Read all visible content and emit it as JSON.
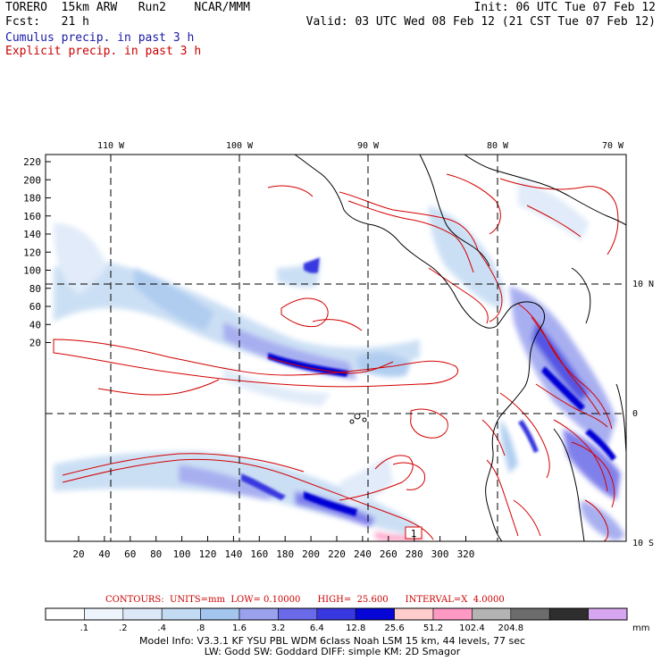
{
  "header": {
    "left_line1": "TORERO  15km ARW   Run2    NCAR/MMM",
    "left_line2": "Fcst:   21 h",
    "right_line1": "Init: 06 UTC Tue 07 Feb 12",
    "right_line2": "Valid: 03 UTC Wed 08 Feb 12 (21 CST Tue 07 Feb 12)",
    "legend_cumulus": "Cumulus precip. in past 3 h",
    "legend_explicit": "Explicit precip. in past 3 h",
    "legend_cumulus_color": "#1a1aa8",
    "legend_explicit_color": "#cc0000"
  },
  "map": {
    "lon_labels": [
      "110 W",
      "100 W",
      "90 W",
      "80 W",
      "70 W"
    ],
    "lat_labels": [
      "10 N",
      "0",
      "10 S"
    ],
    "y_ticks": [
      "220",
      "200",
      "180",
      "160",
      "140",
      "120",
      "100",
      "80",
      "60",
      "40",
      "20"
    ],
    "x_ticks": [
      "20",
      "40",
      "60",
      "80",
      "100",
      "120",
      "140",
      "160",
      "180",
      "200",
      "220",
      "240",
      "260",
      "280",
      "300",
      "320"
    ],
    "station_marker": "1",
    "cumulus_color": "#3a3ad8",
    "explicit_color": "#d40000"
  },
  "contours": {
    "text": "CONTOURS:  UNITS=mm  LOW= 0.10000      HIGH=  25.600      INTERVAL=X  4.0000"
  },
  "colorbar": {
    "labels": [
      ".1",
      ".2",
      ".4",
      ".8",
      "1.6",
      "3.2",
      "6.4",
      "12.8",
      "25.6",
      "51.2",
      "102.4",
      "204.8"
    ],
    "unit": "mm",
    "colors": [
      "#ffffff",
      "#eef4fb",
      "#dce8f8",
      "#c3daf3",
      "#a3c5ee",
      "#9aa2ee",
      "#6a6ae8",
      "#3838e0",
      "#0606d6",
      "#ffcccc",
      "#ff99c3",
      "#b4b4b4",
      "#6c6c6c",
      "#2e2e2e",
      "#d6a6f0"
    ]
  },
  "model_info": {
    "line1": "Model Info: V3.3.1    KF     YSU PBL   WDM 6class  Noah LSM  15 km,    44 levels,    77 sec",
    "line2": "LW: Godd SW: Goddard DIFF: simple KM: 2D Smagor"
  }
}
